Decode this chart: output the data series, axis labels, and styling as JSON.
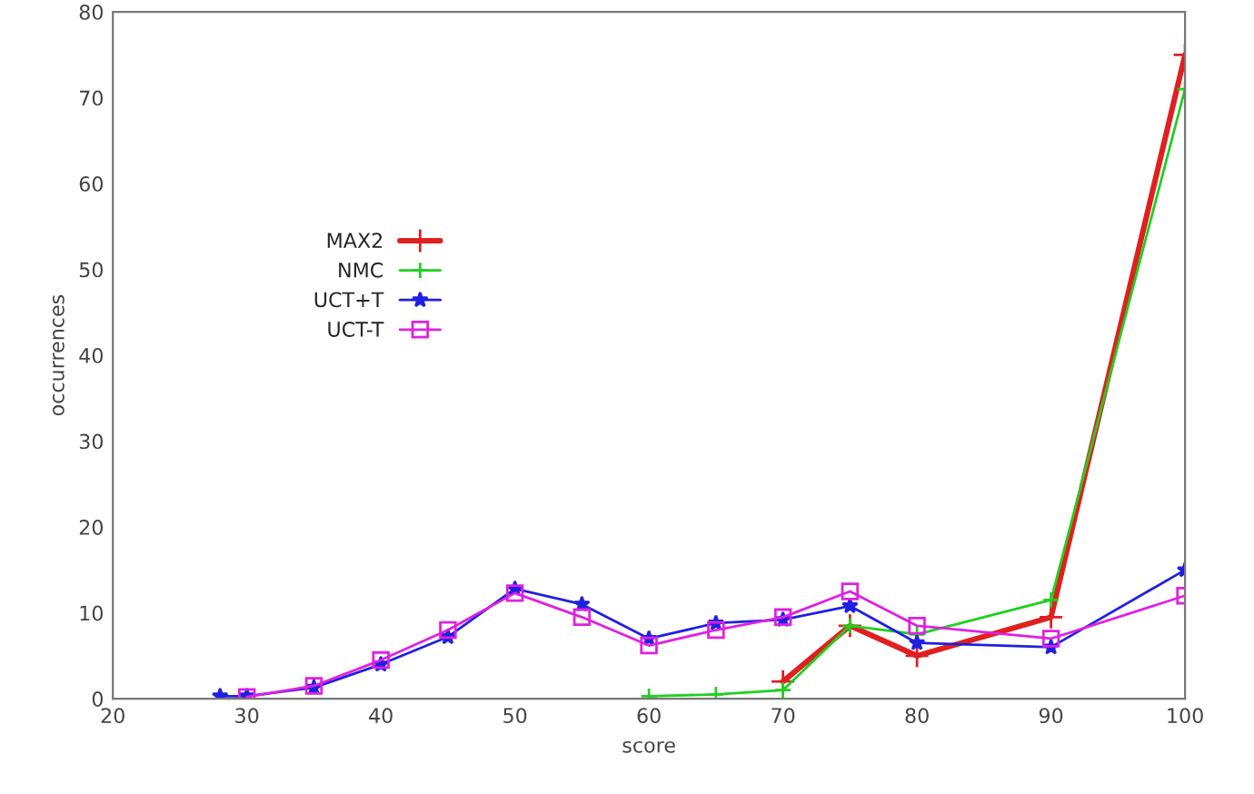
{
  "chart_data": {
    "type": "line",
    "xlabel": "score",
    "ylabel": "occurrences",
    "xlim": [
      20,
      100
    ],
    "ylim": [
      0,
      80
    ],
    "xticks": [
      20,
      30,
      40,
      50,
      60,
      70,
      80,
      90,
      100
    ],
    "yticks": [
      0,
      10,
      20,
      30,
      40,
      50,
      60,
      70,
      80
    ],
    "grid": false,
    "legend": "left",
    "series": [
      {
        "name": "MAX2",
        "color": "#e02020",
        "marker": "cross",
        "x": [
          70,
          75,
          80,
          90,
          100
        ],
        "values": [
          2,
          8.5,
          5,
          9.5,
          75
        ]
      },
      {
        "name": "NMC",
        "color": "#20d020",
        "marker": "cross",
        "x": [
          60,
          65,
          70,
          75,
          80,
          90,
          100
        ],
        "values": [
          0.3,
          0.5,
          1,
          8.5,
          7.5,
          11.5,
          71
        ]
      },
      {
        "name": "UCT+T",
        "color": "#2020e0",
        "marker": "star",
        "x": [
          28,
          30,
          35,
          40,
          45,
          50,
          55,
          60,
          65,
          70,
          75,
          80,
          90,
          100
        ],
        "values": [
          0.3,
          0.3,
          1.3,
          4,
          7.2,
          12.8,
          11,
          7,
          8.8,
          9.2,
          10.8,
          6.5,
          6,
          15
        ]
      },
      {
        "name": "UCT-T",
        "color": "#e020e0",
        "marker": "square",
        "x": [
          30,
          35,
          40,
          45,
          50,
          55,
          60,
          65,
          70,
          75,
          80,
          90,
          100
        ],
        "values": [
          0.2,
          1.5,
          4.5,
          8,
          12.3,
          9.5,
          6.2,
          8,
          9.5,
          12.5,
          8.5,
          7,
          12
        ]
      }
    ]
  }
}
